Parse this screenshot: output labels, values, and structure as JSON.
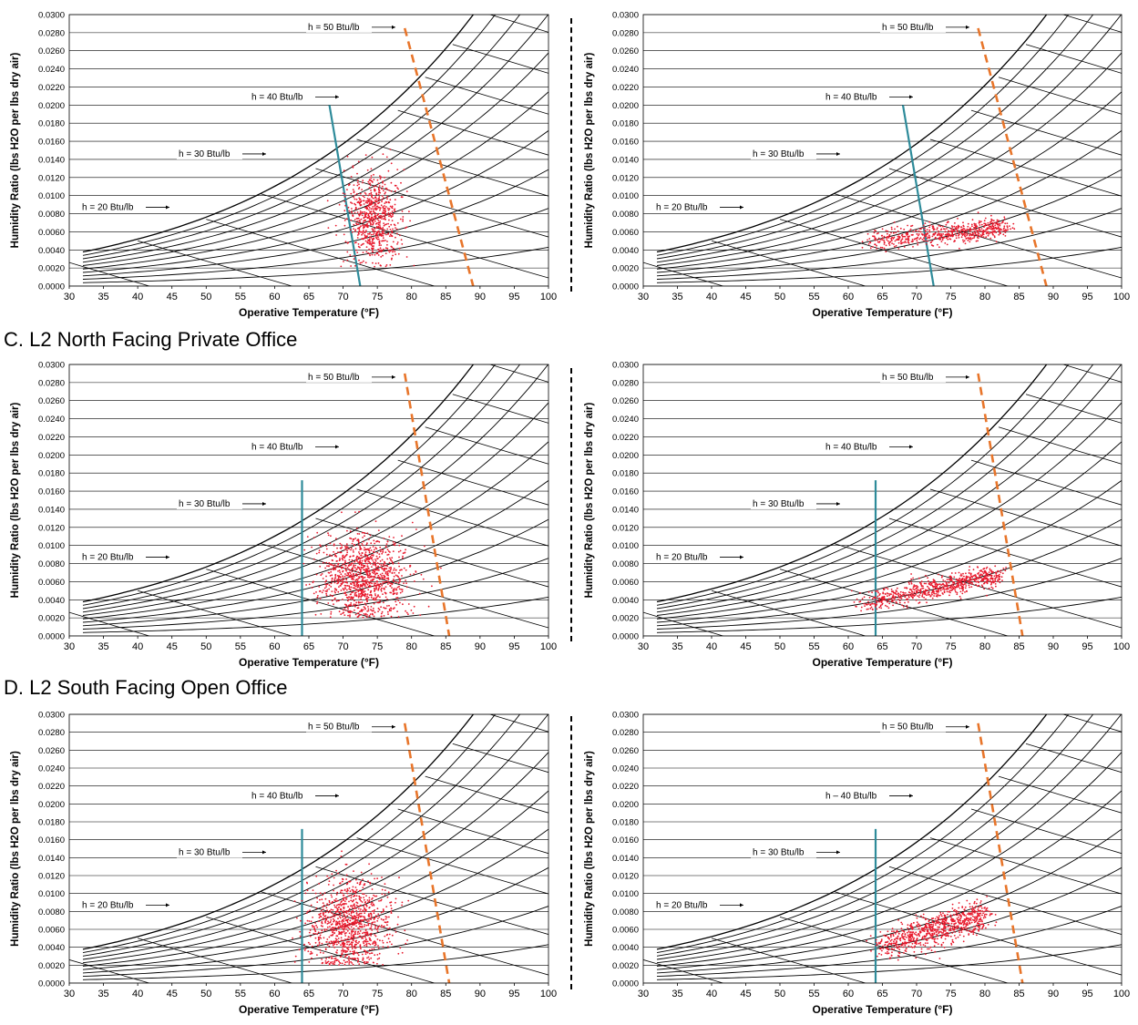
{
  "sections": [
    {
      "title": ""
    },
    {
      "title": "C. L2 North Facing Private Office"
    },
    {
      "title": "D. L2 South Facing Open Office"
    }
  ],
  "colors": {
    "points": "#e8192c",
    "comfort_lower": "#2e8b9a",
    "comfort_upper": "#e8752a",
    "grid": "#000000"
  },
  "chart_data": [
    {
      "type": "scatter",
      "row": 0,
      "side": "left",
      "xlabel": "Operative Temperature (°F)",
      "ylabel": "Humidity Ratio (lbs H2O per lbs dry air)",
      "xlim": [
        30,
        100
      ],
      "ylim": [
        0,
        0.03
      ],
      "x_ticks": [
        "30",
        "35",
        "40",
        "45",
        "50",
        "55",
        "60",
        "65",
        "70",
        "75",
        "80",
        "85",
        "90",
        "95",
        "100"
      ],
      "y_ticks": [
        "0.0000",
        "0.0020",
        "0.0040",
        "0.0060",
        "0.0080",
        "0.0100",
        "0.0120",
        "0.0140",
        "0.0160",
        "0.0180",
        "0.0200",
        "0.0220",
        "0.0240",
        "0.0260",
        "0.0280",
        "0.0300"
      ],
      "enthalpy_labels": [
        "h = 20 Btu/lb",
        "h = 30 Btu/lb",
        "h = 40 Btu/lb",
        "h = 50 Btu/lb"
      ],
      "comfort_lower": [
        [
          68,
          0.02
        ],
        [
          72.5,
          0
        ]
      ],
      "comfort_upper": [
        [
          79,
          0.0285
        ],
        [
          89,
          0
        ]
      ],
      "cluster": {
        "cx": 74.5,
        "cy": 0.0075,
        "sx": 2.0,
        "sy": 0.0025,
        "n": 700
      }
    },
    {
      "type": "scatter",
      "row": 0,
      "side": "right",
      "xlabel": "Operative Temperature (°F)",
      "ylabel": "Humidity Ratio (lbs H2O per lbs dry air)",
      "xlim": [
        30,
        100
      ],
      "ylim": [
        0,
        0.03
      ],
      "x_ticks": [
        "30",
        "35",
        "40",
        "45",
        "50",
        "55",
        "60",
        "65",
        "70",
        "75",
        "80",
        "85",
        "90",
        "95",
        "100"
      ],
      "y_ticks": [
        "0.0000",
        "0.0020",
        "0.0040",
        "0.0060",
        "0.0080",
        "0.0100",
        "0.0120",
        "0.0140",
        "0.0160",
        "0.0180",
        "0.0200",
        "0.0220",
        "0.0240",
        "0.0260",
        "0.0280",
        "0.0300"
      ],
      "enthalpy_labels": [
        "h = 20 Btu/lb",
        "h = 30 Btu/lb",
        "h = 40 Btu/lb",
        "h = 50 Btu/lb"
      ],
      "comfort_lower": [
        [
          68,
          0.02
        ],
        [
          72.5,
          0
        ]
      ],
      "comfort_upper": [
        [
          79,
          0.0285
        ],
        [
          89,
          0
        ]
      ],
      "cluster": {
        "band": true,
        "x0": 63,
        "y0": 0.005,
        "x1": 83,
        "y1": 0.0065,
        "spread": 0.0006,
        "n": 600
      }
    },
    {
      "type": "scatter",
      "row": 1,
      "side": "left",
      "xlabel": "Operative Temperature (°F)",
      "ylabel": "Humidity Ratio (lbs H2O per lbs dry air)",
      "xlim": [
        30,
        100
      ],
      "ylim": [
        0,
        0.03
      ],
      "x_ticks": [
        "30",
        "35",
        "40",
        "45",
        "50",
        "55",
        "60",
        "65",
        "70",
        "75",
        "80",
        "85",
        "90",
        "95",
        "100"
      ],
      "y_ticks": [
        "0.0000",
        "0.0020",
        "0.0040",
        "0.0060",
        "0.0080",
        "0.0100",
        "0.0120",
        "0.0140",
        "0.0160",
        "0.0180",
        "0.0200",
        "0.0220",
        "0.0240",
        "0.0260",
        "0.0280",
        "0.0300"
      ],
      "enthalpy_labels": [
        "h = 20 Btu/lb",
        "h = 30 Btu/lb",
        "h = 40 Btu/lb",
        "h = 50 Btu/lb"
      ],
      "comfort_lower": [
        [
          64,
          0.0172
        ],
        [
          64,
          0
        ]
      ],
      "comfort_upper": [
        [
          79,
          0.029
        ],
        [
          85.5,
          0
        ]
      ],
      "cluster": {
        "cx": 73,
        "cy": 0.0065,
        "sx": 3.2,
        "sy": 0.0022,
        "n": 1100
      }
    },
    {
      "type": "scatter",
      "row": 1,
      "side": "right",
      "xlabel": "Operative Temperature (°F)",
      "ylabel": "Humidity Ratio (lbs H2O per lbs dry air)",
      "xlim": [
        30,
        100
      ],
      "ylim": [
        0,
        0.03
      ],
      "x_ticks": [
        "30",
        "35",
        "40",
        "45",
        "50",
        "55",
        "60",
        "65",
        "70",
        "75",
        "80",
        "85",
        "90",
        "95",
        "100"
      ],
      "y_ticks": [
        "0.0000",
        "0.0020",
        "0.0040",
        "0.0060",
        "0.0080",
        "0.0100",
        "0.0120",
        "0.0140",
        "0.0160",
        "0.0180",
        "0.0200",
        "0.0220",
        "0.0240",
        "0.0260",
        "0.0280",
        "0.0300"
      ],
      "enthalpy_labels": [
        "h = 20 Btu/lb",
        "h = 30 Btu/lb",
        "h = 40 Btu/lb",
        "h = 50 Btu/lb"
      ],
      "comfort_lower": [
        [
          64,
          0.0172
        ],
        [
          64,
          0
        ]
      ],
      "comfort_upper": [
        [
          79,
          0.029
        ],
        [
          85.5,
          0
        ]
      ],
      "cluster": {
        "band": true,
        "x0": 62,
        "y0": 0.0035,
        "x1": 82,
        "y1": 0.0068,
        "spread": 0.0006,
        "n": 700
      }
    },
    {
      "type": "scatter",
      "row": 2,
      "side": "left",
      "xlabel": "Operative Temperature (°F)",
      "ylabel": "Humidity Ratio (lbs H2O per lbs dry air)",
      "xlim": [
        30,
        100
      ],
      "ylim": [
        0,
        0.03
      ],
      "x_ticks": [
        "30",
        "35",
        "40",
        "45",
        "50",
        "55",
        "60",
        "65",
        "70",
        "75",
        "80",
        "85",
        "90",
        "95",
        "100"
      ],
      "y_ticks": [
        "0.0000",
        "0.0020",
        "0.0040",
        "0.0060",
        "0.0080",
        "0.0100",
        "0.0120",
        "0.0140",
        "0.0160",
        "0.0180",
        "0.0200",
        "0.0220",
        "0.0240",
        "0.0260",
        "0.0280",
        "0.0300"
      ],
      "enthalpy_labels": [
        "h = 20 Btu/lb",
        "h = 30 Btu/lb",
        "h = 40 Btu/lb",
        "h = 50 Btu/lb"
      ],
      "comfort_lower": [
        [
          64,
          0.0172
        ],
        [
          64,
          0
        ]
      ],
      "comfort_upper": [
        [
          79,
          0.029
        ],
        [
          85.5,
          0
        ]
      ],
      "cluster": {
        "cx": 71,
        "cy": 0.0065,
        "sx": 3.0,
        "sy": 0.0025,
        "n": 1000
      }
    },
    {
      "type": "scatter",
      "row": 2,
      "side": "right",
      "xlabel": "Operative Temperature (°F)",
      "ylabel": "Humidity Ratio (lbs H2O per lbs dry air)",
      "xlim": [
        30,
        100
      ],
      "ylim": [
        0,
        0.03
      ],
      "x_ticks": [
        "30",
        "35",
        "40",
        "45",
        "50",
        "55",
        "60",
        "65",
        "70",
        "75",
        "80",
        "85",
        "90",
        "95",
        "100"
      ],
      "y_ticks": [
        "0.0000",
        "0.0020",
        "0.0040",
        "0.0060",
        "0.0080",
        "0.0100",
        "0.0120",
        "0.0140",
        "0.0160",
        "0.0180",
        "0.0200",
        "0.0220",
        "0.0240",
        "0.0260",
        "0.0280",
        "0.0300"
      ],
      "enthalpy_labels": [
        "h = 20 Btu/lb",
        "h = 30 Btu/lb",
        "h – 40 Btu/lb",
        "h = 50 Btu/lb"
      ],
      "comfort_lower": [
        [
          64,
          0.0172
        ],
        [
          64,
          0
        ]
      ],
      "comfort_upper": [
        [
          79,
          0.029
        ],
        [
          85.5,
          0
        ]
      ],
      "cluster": {
        "band": true,
        "x0": 64,
        "y0": 0.004,
        "x1": 80,
        "y1": 0.0075,
        "spread": 0.0009,
        "n": 800
      }
    }
  ]
}
